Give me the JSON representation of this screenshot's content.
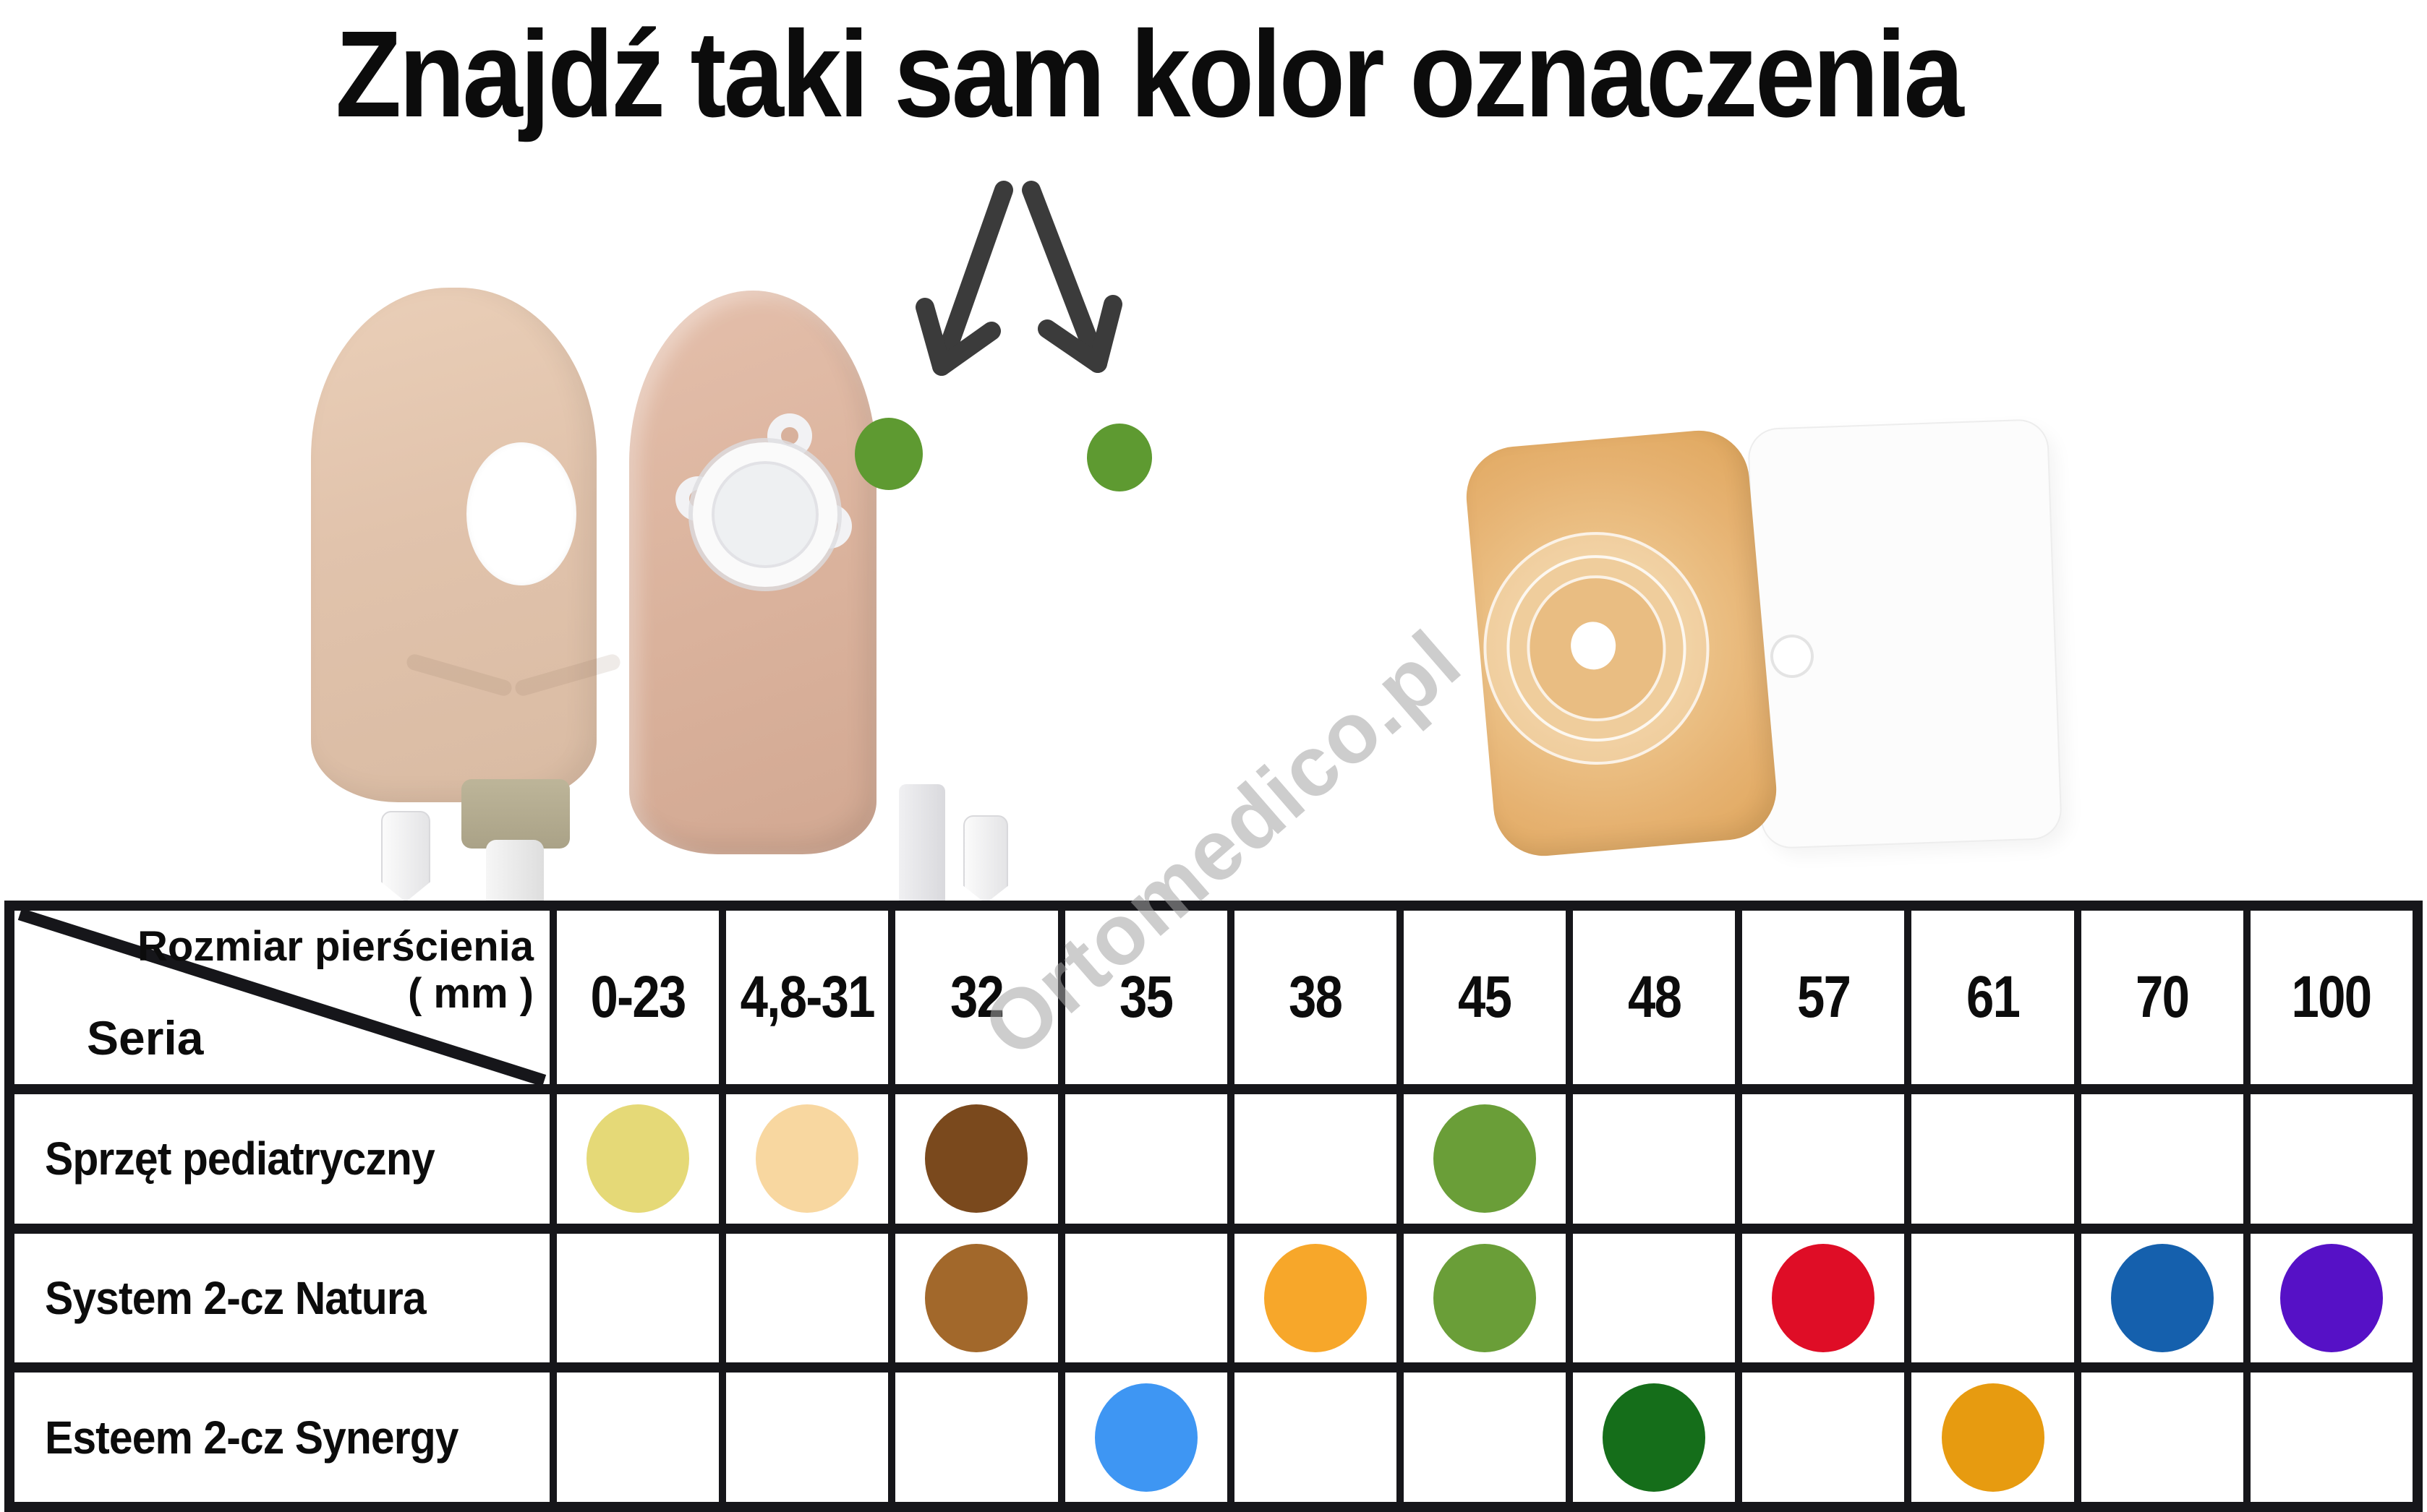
{
  "title": "Znajdź taki sam kolor oznaczenia",
  "watermark": "Ortomedico.pl",
  "colors": {
    "table-border": "#16161a",
    "arrow": "#3b3b3b",
    "marker-green": "#5e9a31",
    "watermark-gray": "#a5a5a5"
  },
  "table": {
    "corner": {
      "top_line1": "Rozmiar pierścienia",
      "top_line2": "( mm )",
      "bottom_label": "Seria"
    },
    "columns": [
      "0-23",
      "4,8-31",
      "32",
      "35",
      "38",
      "45",
      "48",
      "57",
      "61",
      "70",
      "100"
    ],
    "rows": [
      {
        "label": "Sprzęt  pediatryczny",
        "dots": [
          "#e5d977",
          "#f8d7a0",
          "#7a491d",
          null,
          null,
          "#6a9e38",
          null,
          null,
          null,
          null,
          null
        ]
      },
      {
        "label": "System 2-cz Natura",
        "dots": [
          null,
          null,
          "#a2682b",
          null,
          "#f7a72a",
          "#6a9e38",
          null,
          "#df0d26",
          null,
          "#1560ad",
          "#5611c6"
        ]
      },
      {
        "label": "Esteem 2-cz Synergy",
        "dots": [
          null,
          null,
          null,
          "#3e96f3",
          null,
          null,
          "#156e1a",
          null,
          "#e79b10",
          null,
          null
        ]
      }
    ]
  }
}
